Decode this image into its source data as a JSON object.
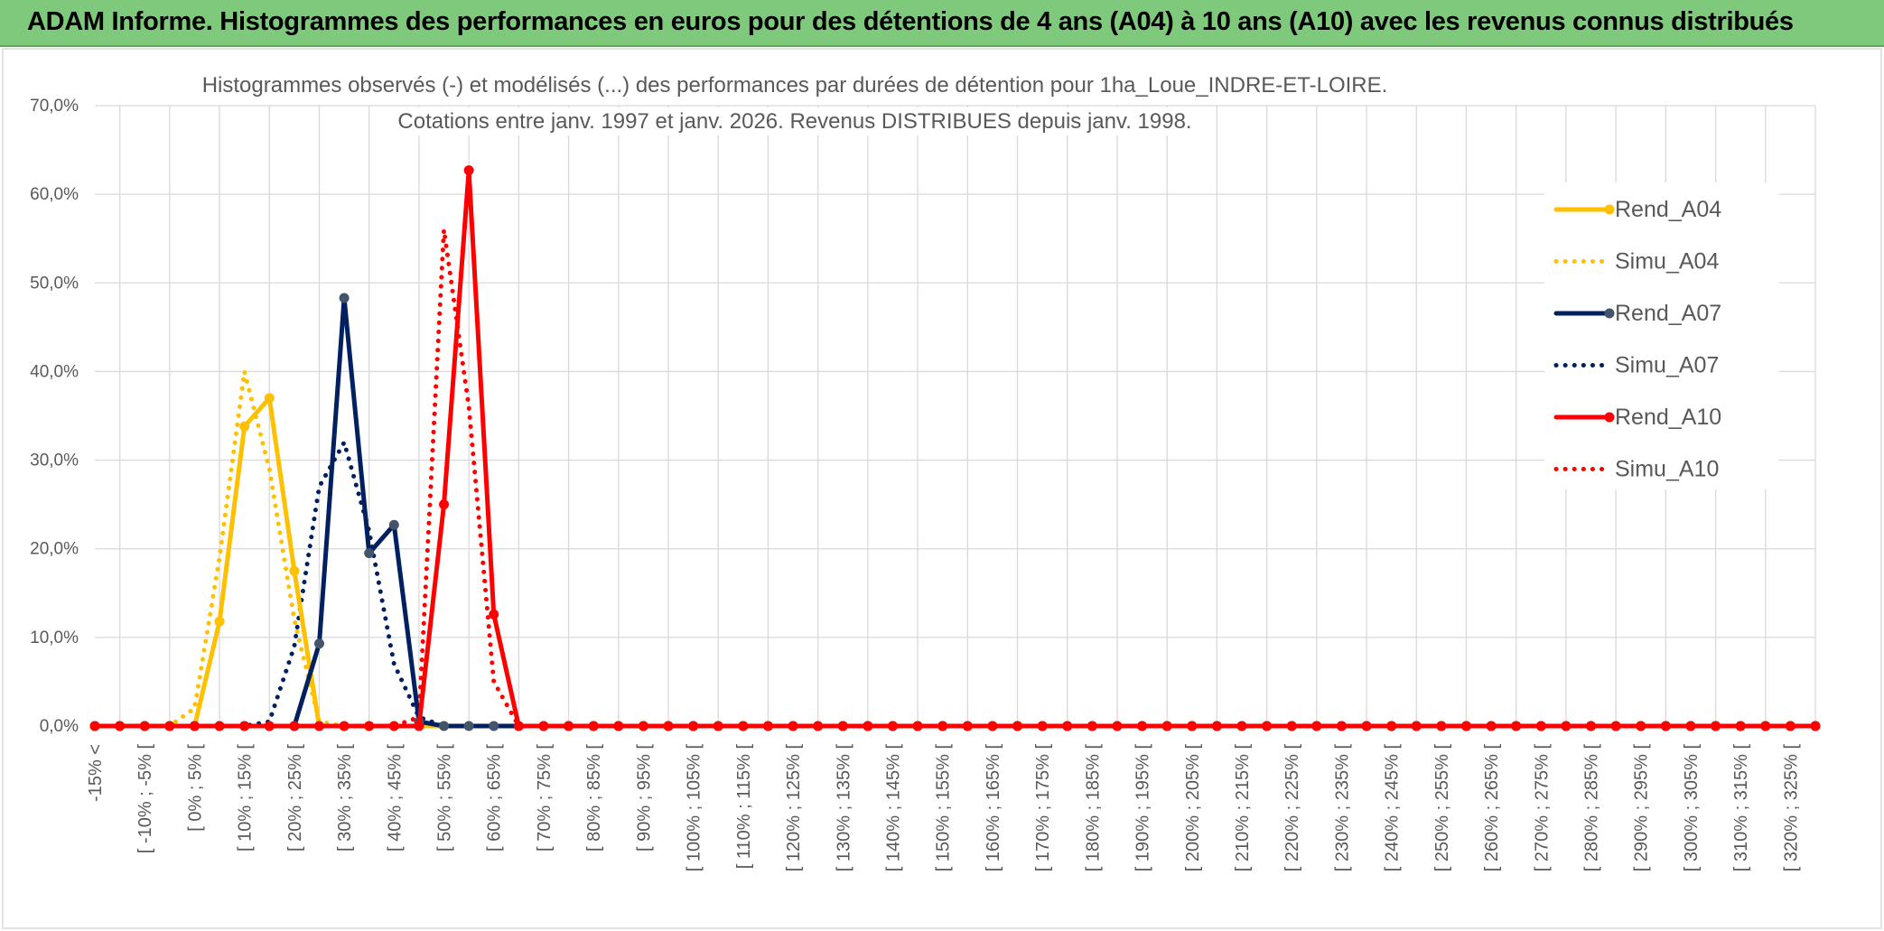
{
  "chart_data": {
    "type": "line",
    "title": "ADAM Informe. Histogrammes des performances en euros pour des détentions de 4 ans (A04) à 10 ans (A10) avec les revenus connus distribués",
    "subtitle": [
      "Histogrammes observés (-) et modélisés (...) des performances par durées de détention pour 1ha_Loue_INDRE-ET-LOIRE.",
      "Cotations entre janv. 1997 et janv. 2026. Revenus DISTRIBUES depuis janv. 1998."
    ],
    "categories": [
      "-15% <",
      null,
      "[ -10% ; -5% [",
      null,
      "[ 0% ; 5% [",
      null,
      "[ 10% ; 15% [",
      null,
      "[ 20% ; 25% [",
      null,
      "[ 30% ; 35% [",
      null,
      "[ 40% ; 45% [",
      null,
      "[ 50% ; 55% [",
      null,
      "[ 60% ; 65% [",
      null,
      "[ 70% ; 75% [",
      null,
      "[ 80% ; 85% [",
      null,
      "[ 90% ; 95% [",
      null,
      "[ 100% ; 105% [",
      null,
      "[ 110% ; 115% [",
      null,
      "[ 120% ; 125% [",
      null,
      "[ 130% ; 135% [",
      null,
      "[ 140% ; 145% [",
      null,
      "[ 150% ; 155% [",
      null,
      "[ 160% ; 165% [",
      null,
      "[ 170% ; 175% [",
      null,
      "[ 180% ; 185% [",
      null,
      "[ 190% ; 195% [",
      null,
      "[ 200% ; 205% [",
      null,
      "[ 210% ; 215% [",
      null,
      "[ 220% ; 225% [",
      null,
      "[ 230% ; 235% [",
      null,
      "[ 240% ; 245% [",
      null,
      "[ 250% ; 255% [",
      null,
      "[ 260% ; 265% [",
      null,
      "[ 270% ; 275% [",
      null,
      "[ 280% ; 285% [",
      null,
      "[ 290% ; 295% [",
      null,
      "[ 300% ; 305% [",
      null,
      "[ 310% ; 315% [",
      null,
      "[ 320% ; 325% [",
      null
    ],
    "ylim": [
      0,
      70
    ],
    "yticks": [
      {
        "value": 0,
        "label": "0,0%"
      },
      {
        "value": 10,
        "label": "10,0%"
      },
      {
        "value": 20,
        "label": "20,0%"
      },
      {
        "value": 30,
        "label": "30,0%"
      },
      {
        "value": 40,
        "label": "40,0%"
      },
      {
        "value": 50,
        "label": "50,0%"
      },
      {
        "value": 60,
        "label": "60,0%"
      },
      {
        "value": 70,
        "label": "70,0%"
      }
    ],
    "grid": true,
    "legend": "right",
    "series": [
      {
        "name": "Rend_A04",
        "color": "#ffc000",
        "style": "solid",
        "values": [
          0,
          0,
          0,
          0,
          0,
          11.8,
          33.8,
          37,
          17.5,
          0,
          0,
          0,
          0,
          0,
          0,
          0,
          0,
          0,
          0,
          0,
          0,
          0,
          0,
          0,
          0,
          0,
          0,
          0,
          0,
          0,
          0,
          0,
          0,
          0,
          0,
          0,
          0,
          0,
          0,
          0,
          0,
          0,
          0,
          0,
          0,
          0,
          0,
          0,
          0,
          0,
          0,
          0,
          0,
          0,
          0,
          0,
          0,
          0,
          0,
          0,
          0,
          0,
          0,
          0,
          0,
          0,
          0,
          0,
          0,
          0
        ]
      },
      {
        "name": "Simu_A04",
        "color": "#ffc000",
        "style": "dotted",
        "values": [
          0,
          0,
          0,
          0,
          2,
          19,
          40,
          29,
          12,
          0.5,
          0,
          0,
          0,
          0,
          0,
          0,
          0,
          0,
          0,
          0,
          0,
          0,
          0,
          0,
          0,
          0,
          0,
          0,
          0,
          0,
          0,
          0,
          0,
          0,
          0,
          0,
          0,
          0,
          0,
          0,
          0,
          0,
          0,
          0,
          0,
          0,
          0,
          0,
          0,
          0,
          0,
          0,
          0,
          0,
          0,
          0,
          0,
          0,
          0,
          0,
          0,
          0,
          0,
          0,
          0,
          0,
          0,
          0,
          0,
          0
        ]
      },
      {
        "name": "Rend_A07",
        "color": "#002060",
        "style": "solid",
        "values": [
          0,
          0,
          0,
          0,
          0,
          0,
          0,
          0,
          0,
          9.3,
          48.3,
          19.5,
          22.7,
          0.5,
          0,
          0,
          0,
          0,
          0,
          0,
          0,
          0,
          0,
          0,
          0,
          0,
          0,
          0,
          0,
          0,
          0,
          0,
          0,
          0,
          0,
          0,
          0,
          0,
          0,
          0,
          0,
          0,
          0,
          0,
          0,
          0,
          0,
          0,
          0,
          0,
          0,
          0,
          0,
          0,
          0,
          0,
          0,
          0,
          0,
          0,
          0,
          0,
          0,
          0,
          0,
          0,
          0,
          0,
          0,
          0
        ]
      },
      {
        "name": "Simu_A07",
        "color": "#002060",
        "style": "dotted",
        "values": [
          0,
          0,
          0,
          0,
          0,
          0,
          0,
          0.5,
          9,
          27,
          32,
          22,
          7,
          1,
          0,
          0,
          0,
          0,
          0,
          0,
          0,
          0,
          0,
          0,
          0,
          0,
          0,
          0,
          0,
          0,
          0,
          0,
          0,
          0,
          0,
          0,
          0,
          0,
          0,
          0,
          0,
          0,
          0,
          0,
          0,
          0,
          0,
          0,
          0,
          0,
          0,
          0,
          0,
          0,
          0,
          0,
          0,
          0,
          0,
          0,
          0,
          0,
          0,
          0,
          0,
          0,
          0,
          0,
          0,
          0
        ]
      },
      {
        "name": "Rend_A10",
        "color": "#ff0000",
        "style": "solid",
        "values": [
          0,
          0,
          0,
          0,
          0,
          0,
          0,
          0,
          0,
          0,
          0,
          0,
          0,
          0,
          25,
          62.7,
          12.6,
          0,
          0,
          0,
          0,
          0,
          0,
          0,
          0,
          0,
          0,
          0,
          0,
          0,
          0,
          0,
          0,
          0,
          0,
          0,
          0,
          0,
          0,
          0,
          0,
          0,
          0,
          0,
          0,
          0,
          0,
          0,
          0,
          0,
          0,
          0,
          0,
          0,
          0,
          0,
          0,
          0,
          0,
          0,
          0,
          0,
          0,
          0,
          0,
          0,
          0,
          0,
          0,
          0
        ]
      },
      {
        "name": "Simu_A10",
        "color": "#ff0000",
        "style": "dotted",
        "values": [
          0,
          0,
          0,
          0,
          0,
          0,
          0,
          0,
          0,
          0,
          0,
          0,
          0,
          1,
          56,
          36,
          5,
          0,
          0,
          0,
          0,
          0,
          0,
          0,
          0,
          0,
          0,
          0,
          0,
          0,
          0,
          0,
          0,
          0,
          0,
          0,
          0,
          0,
          0,
          0,
          0,
          0,
          0,
          0,
          0,
          0,
          0,
          0,
          0,
          0,
          0,
          0,
          0,
          0,
          0,
          0,
          0,
          0,
          0,
          0,
          0,
          0,
          0,
          0,
          0,
          0,
          0,
          0,
          0,
          0
        ]
      }
    ]
  }
}
